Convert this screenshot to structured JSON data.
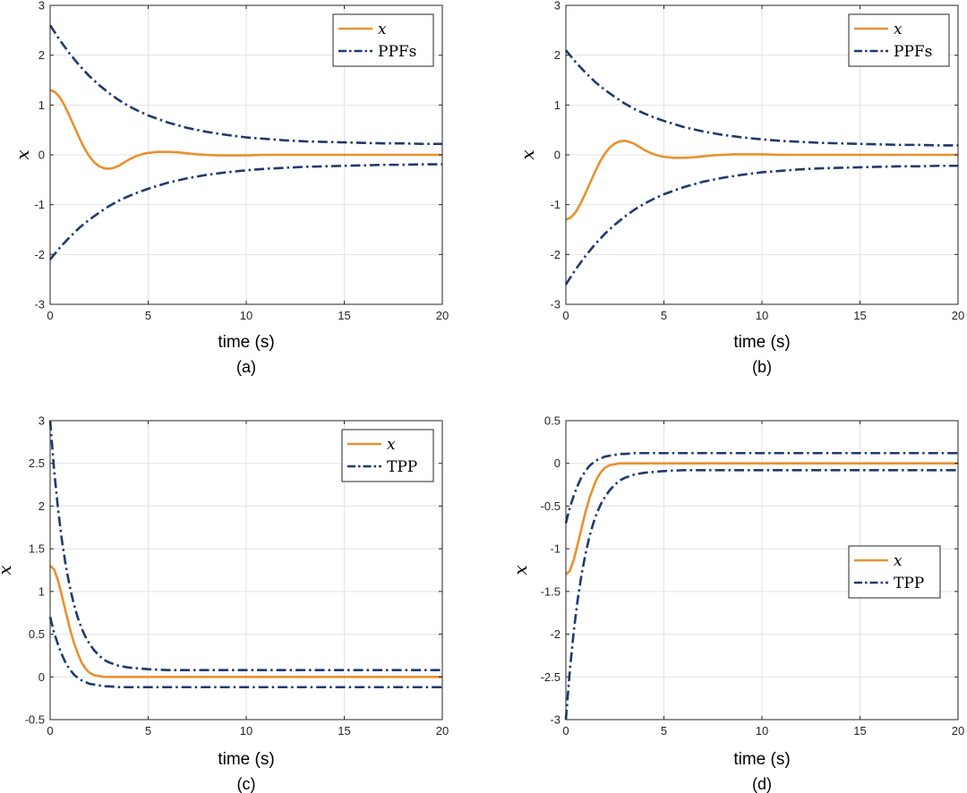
{
  "colors": {
    "state": "#E8912F",
    "bound": "#1F3A6E",
    "grid": "#E3E3E3",
    "axis": "#262626"
  },
  "chart_data": [
    {
      "type": "line",
      "caption": "(a)",
      "xlabel": "time (s)",
      "ylabel": "x",
      "xlim": [
        0,
        20
      ],
      "ylim": [
        -3,
        3
      ],
      "xticks": [
        0,
        5,
        10,
        15,
        20
      ],
      "yticks": [
        -3,
        -2,
        -1,
        0,
        1,
        2,
        3
      ],
      "grid": true,
      "legend_position": "top-right",
      "series": [
        {
          "name": "x",
          "style": "solid",
          "x": [
            0,
            0.25,
            0.5,
            0.75,
            1,
            1.25,
            1.5,
            1.75,
            2,
            2.25,
            2.5,
            2.75,
            3,
            3.25,
            3.5,
            3.75,
            4,
            4.25,
            4.5,
            4.75,
            5,
            5.5,
            6,
            6.5,
            7,
            7.5,
            8,
            8.5,
            9,
            10,
            11,
            12,
            13,
            14,
            15,
            16,
            17,
            18,
            19,
            20
          ],
          "y": [
            1.3,
            1.26,
            1.15,
            0.98,
            0.77,
            0.55,
            0.33,
            0.13,
            -0.03,
            -0.15,
            -0.23,
            -0.27,
            -0.28,
            -0.26,
            -0.22,
            -0.16,
            -0.1,
            -0.05,
            -0.01,
            0.02,
            0.04,
            0.06,
            0.06,
            0.05,
            0.03,
            0.01,
            0,
            -0.01,
            -0.01,
            -0.01,
            0,
            0,
            0,
            0,
            0,
            0,
            0,
            0,
            0,
            0
          ]
        },
        {
          "name": "PPFs",
          "style": "dashdot",
          "x": [
            0,
            0.5,
            1,
            1.5,
            2,
            2.5,
            3,
            3.5,
            4,
            4.5,
            5,
            6,
            7,
            8,
            9,
            10,
            11,
            12,
            13,
            14,
            15,
            16,
            17,
            18,
            19,
            20
          ],
          "y": [
            2.6,
            2.3,
            2.03,
            1.79,
            1.58,
            1.4,
            1.24,
            1.1,
            0.98,
            0.88,
            0.79,
            0.65,
            0.54,
            0.46,
            0.4,
            0.35,
            0.32,
            0.29,
            0.27,
            0.26,
            0.25,
            0.24,
            0.23,
            0.23,
            0.22,
            0.22
          ]
        },
        {
          "style": "dashdot",
          "x": [
            0,
            0.5,
            1,
            1.5,
            2,
            2.5,
            3,
            3.5,
            4,
            4.5,
            5,
            6,
            7,
            8,
            9,
            10,
            11,
            12,
            13,
            14,
            15,
            16,
            17,
            18,
            19,
            20
          ],
          "y": [
            -2.1,
            -1.86,
            -1.65,
            -1.46,
            -1.3,
            -1.16,
            -1.03,
            -0.92,
            -0.83,
            -0.75,
            -0.68,
            -0.56,
            -0.47,
            -0.4,
            -0.35,
            -0.31,
            -0.28,
            -0.26,
            -0.24,
            -0.23,
            -0.22,
            -0.21,
            -0.2,
            -0.2,
            -0.19,
            -0.19
          ]
        }
      ]
    },
    {
      "type": "line",
      "caption": "(b)",
      "xlabel": "time (s)",
      "ylabel": "x",
      "xlim": [
        0,
        20
      ],
      "ylim": [
        -3,
        3
      ],
      "xticks": [
        0,
        5,
        10,
        15,
        20
      ],
      "yticks": [
        -3,
        -2,
        -1,
        0,
        1,
        2,
        3
      ],
      "grid": true,
      "legend_position": "top-right",
      "series": [
        {
          "name": "x",
          "style": "solid",
          "x": [
            0,
            0.25,
            0.5,
            0.75,
            1,
            1.25,
            1.5,
            1.75,
            2,
            2.25,
            2.5,
            2.75,
            3,
            3.25,
            3.5,
            3.75,
            4,
            4.25,
            4.5,
            4.75,
            5,
            5.5,
            6,
            6.5,
            7,
            7.5,
            8,
            8.5,
            9,
            10,
            11,
            12,
            13,
            14,
            15,
            16,
            17,
            18,
            19,
            20
          ],
          "y": [
            -1.3,
            -1.26,
            -1.15,
            -0.98,
            -0.77,
            -0.55,
            -0.33,
            -0.13,
            0.03,
            0.15,
            0.23,
            0.27,
            0.28,
            0.26,
            0.22,
            0.16,
            0.1,
            0.05,
            0.01,
            -0.02,
            -0.04,
            -0.06,
            -0.06,
            -0.05,
            -0.03,
            -0.01,
            0,
            0.01,
            0.01,
            0.01,
            0,
            0,
            0,
            0,
            0,
            0,
            0,
            0,
            0,
            0
          ]
        },
        {
          "name": "PPFs",
          "style": "dashdot",
          "x": [
            0,
            0.5,
            1,
            1.5,
            2,
            2.5,
            3,
            3.5,
            4,
            4.5,
            5,
            6,
            7,
            8,
            9,
            10,
            11,
            12,
            13,
            14,
            15,
            16,
            17,
            18,
            19,
            20
          ],
          "y": [
            2.1,
            1.86,
            1.65,
            1.46,
            1.3,
            1.16,
            1.03,
            0.92,
            0.83,
            0.75,
            0.68,
            0.56,
            0.47,
            0.4,
            0.35,
            0.31,
            0.28,
            0.26,
            0.24,
            0.23,
            0.22,
            0.21,
            0.2,
            0.2,
            0.19,
            0.19
          ]
        },
        {
          "style": "dashdot",
          "x": [
            0,
            0.5,
            1,
            1.5,
            2,
            2.5,
            3,
            3.5,
            4,
            4.5,
            5,
            6,
            7,
            8,
            9,
            10,
            11,
            12,
            13,
            14,
            15,
            16,
            17,
            18,
            19,
            20
          ],
          "y": [
            -2.6,
            -2.3,
            -2.03,
            -1.79,
            -1.58,
            -1.4,
            -1.24,
            -1.1,
            -0.98,
            -0.88,
            -0.79,
            -0.65,
            -0.54,
            -0.46,
            -0.4,
            -0.35,
            -0.32,
            -0.29,
            -0.27,
            -0.26,
            -0.25,
            -0.24,
            -0.23,
            -0.23,
            -0.22,
            -0.22
          ]
        }
      ]
    },
    {
      "type": "line",
      "caption": "(c)",
      "xlabel": "time (s)",
      "ylabel": "x",
      "xlim": [
        0,
        20
      ],
      "ylim": [
        -0.5,
        3
      ],
      "xticks": [
        0,
        5,
        10,
        15,
        20
      ],
      "yticks": [
        -0.5,
        0,
        0.5,
        1,
        1.5,
        2,
        2.5,
        3
      ],
      "grid": true,
      "legend_position": "top-right",
      "series": [
        {
          "name": "x",
          "style": "solid",
          "x": [
            0,
            0.2,
            0.4,
            0.6,
            0.8,
            1,
            1.2,
            1.4,
            1.6,
            1.8,
            2,
            2.25,
            2.5,
            2.75,
            3,
            3.5,
            4,
            5,
            6,
            8,
            10,
            12,
            14,
            16,
            18,
            20
          ],
          "y": [
            1.3,
            1.26,
            1.13,
            0.95,
            0.76,
            0.57,
            0.41,
            0.28,
            0.17,
            0.1,
            0.05,
            0.02,
            0.01,
            0,
            0,
            0,
            0,
            0,
            0,
            0,
            0,
            0,
            0,
            0,
            0,
            0
          ]
        },
        {
          "name": "TPP",
          "style": "dashdot",
          "x": [
            0,
            0.2,
            0.4,
            0.6,
            0.8,
            1,
            1.2,
            1.4,
            1.6,
            1.8,
            2,
            2.25,
            2.5,
            2.75,
            3,
            3.5,
            4,
            5,
            6,
            8,
            10,
            12,
            14,
            16,
            18,
            20
          ],
          "y": [
            3,
            2.43,
            1.97,
            1.6,
            1.3,
            1.06,
            0.86,
            0.7,
            0.57,
            0.47,
            0.39,
            0.31,
            0.25,
            0.2,
            0.17,
            0.13,
            0.11,
            0.09,
            0.08,
            0.08,
            0.08,
            0.08,
            0.08,
            0.08,
            0.08,
            0.08
          ]
        },
        {
          "style": "dashdot",
          "x": [
            0,
            0.2,
            0.4,
            0.6,
            0.8,
            1,
            1.2,
            1.4,
            1.6,
            1.8,
            2,
            2.25,
            2.5,
            2.75,
            3,
            3.5,
            4,
            5,
            6,
            8,
            10,
            12,
            14,
            16,
            18,
            20
          ],
          "y": [
            0.7,
            0.52,
            0.38,
            0.26,
            0.16,
            0.09,
            0.03,
            -0.01,
            -0.04,
            -0.06,
            -0.08,
            -0.09,
            -0.1,
            -0.11,
            -0.11,
            -0.12,
            -0.12,
            -0.12,
            -0.12,
            -0.12,
            -0.12,
            -0.12,
            -0.12,
            -0.12,
            -0.12,
            -0.12
          ]
        }
      ]
    },
    {
      "type": "line",
      "caption": "(d)",
      "xlabel": "time (s)",
      "ylabel": "x",
      "xlim": [
        0,
        20
      ],
      "ylim": [
        -3,
        0.5
      ],
      "xticks": [
        0,
        5,
        10,
        15,
        20
      ],
      "yticks": [
        -3,
        -2.5,
        -2,
        -1.5,
        -1,
        -0.5,
        0,
        0.5
      ],
      "grid": true,
      "legend_position": "center-right",
      "series": [
        {
          "name": "x",
          "style": "solid",
          "x": [
            0,
            0.2,
            0.4,
            0.6,
            0.8,
            1,
            1.2,
            1.4,
            1.6,
            1.8,
            2,
            2.25,
            2.5,
            2.75,
            3,
            3.5,
            4,
            5,
            6,
            8,
            10,
            12,
            14,
            16,
            18,
            20
          ],
          "y": [
            -1.3,
            -1.26,
            -1.13,
            -0.95,
            -0.76,
            -0.57,
            -0.41,
            -0.28,
            -0.17,
            -0.1,
            -0.05,
            -0.02,
            -0.01,
            0,
            0,
            0,
            0,
            0,
            0,
            0,
            0,
            0,
            0,
            0,
            0,
            0
          ]
        },
        {
          "name": "TPP",
          "style": "dashdot",
          "x": [
            0,
            0.2,
            0.4,
            0.6,
            0.8,
            1,
            1.2,
            1.4,
            1.6,
            1.8,
            2,
            2.25,
            2.5,
            2.75,
            3,
            3.5,
            4,
            5,
            6,
            8,
            10,
            12,
            14,
            16,
            18,
            20
          ],
          "y": [
            -0.7,
            -0.52,
            -0.38,
            -0.26,
            -0.16,
            -0.09,
            -0.03,
            0.01,
            0.04,
            0.06,
            0.08,
            0.09,
            0.1,
            0.11,
            0.11,
            0.12,
            0.12,
            0.12,
            0.12,
            0.12,
            0.12,
            0.12,
            0.12,
            0.12,
            0.12,
            0.12
          ]
        },
        {
          "style": "dashdot",
          "x": [
            0,
            0.2,
            0.4,
            0.6,
            0.8,
            1,
            1.2,
            1.4,
            1.6,
            1.8,
            2,
            2.25,
            2.5,
            2.75,
            3,
            3.5,
            4,
            5,
            6,
            8,
            10,
            12,
            14,
            16,
            18,
            20
          ],
          "y": [
            -3,
            -2.43,
            -1.97,
            -1.6,
            -1.3,
            -1.06,
            -0.86,
            -0.7,
            -0.57,
            -0.47,
            -0.39,
            -0.31,
            -0.25,
            -0.2,
            -0.17,
            -0.13,
            -0.11,
            -0.09,
            -0.08,
            -0.08,
            -0.08,
            -0.08,
            -0.08,
            -0.08,
            -0.08,
            -0.08
          ]
        }
      ]
    }
  ]
}
